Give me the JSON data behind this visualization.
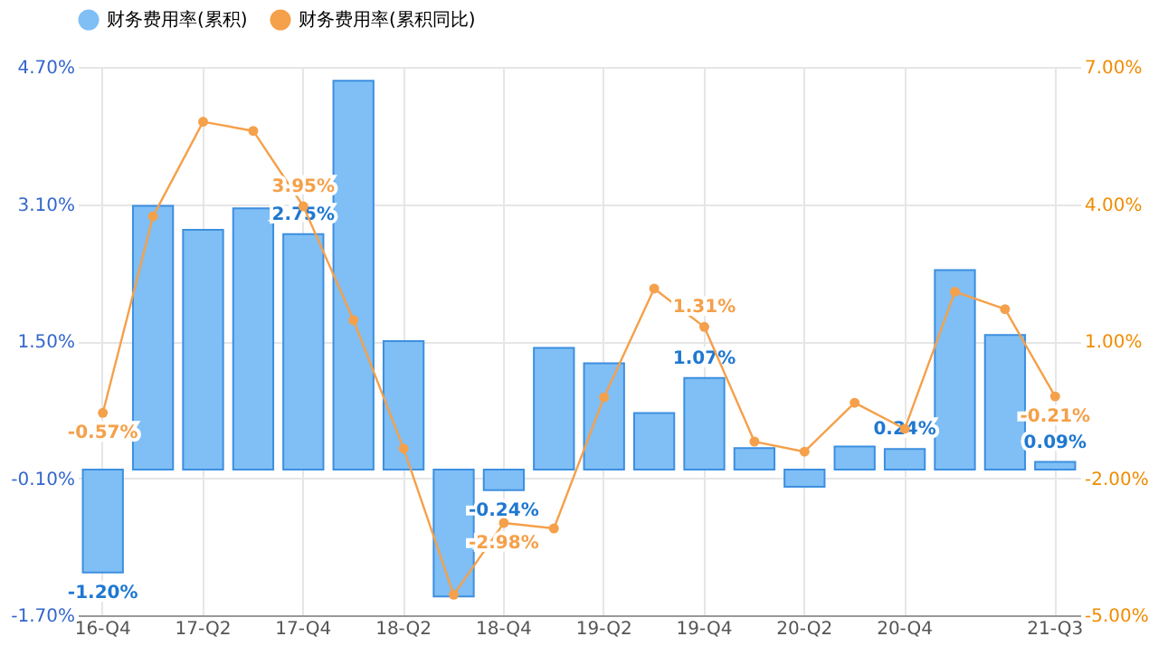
{
  "chart_data": {
    "type": "bar",
    "categories": [
      "16-Q4",
      null,
      "17-Q2",
      null,
      "17-Q4",
      null,
      "18-Q2",
      null,
      "18-Q4",
      null,
      "19-Q2",
      null,
      "19-Q4",
      null,
      "20-Q2",
      null,
      "20-Q4",
      null,
      null,
      "21-Q3"
    ],
    "series": [
      {
        "name": "财务费用率(累积)",
        "color": "#7fbff5",
        "values": [
          -1.2,
          3.08,
          2.8,
          3.05,
          2.75,
          4.54,
          1.5,
          -1.48,
          -0.24,
          1.42,
          1.24,
          0.66,
          1.07,
          0.25,
          -0.2,
          0.27,
          0.24,
          2.33,
          1.57,
          0.09
        ],
        "value_labels": [
          "-1.20%",
          null,
          null,
          null,
          "2.75%",
          null,
          null,
          null,
          "-0.24%",
          null,
          null,
          null,
          "1.07%",
          null,
          null,
          null,
          "0.24%",
          null,
          null,
          "0.09%"
        ]
      },
      {
        "name": "财务费用率(累积同比)",
        "type": "line",
        "axis": "y2",
        "color": "#f5a04a",
        "values": [
          -0.57,
          3.73,
          5.8,
          5.6,
          3.95,
          1.46,
          -1.35,
          -4.55,
          -2.98,
          -3.1,
          -0.23,
          2.15,
          1.31,
          -1.2,
          -1.42,
          -0.35,
          -0.92,
          2.08,
          1.7,
          -0.21
        ],
        "value_labels": [
          "-0.57%",
          null,
          null,
          null,
          "3.95%",
          null,
          null,
          null,
          "-2.98%",
          null,
          null,
          null,
          "1.31%",
          null,
          null,
          null,
          null,
          null,
          null,
          "-0.21%"
        ]
      }
    ],
    "ylim": [
      -1.7,
      4.7
    ],
    "yticks": [
      {
        "value": -1.7,
        "label": "-1.70%"
      },
      {
        "value": -0.1,
        "label": "-0.10%"
      },
      {
        "value": 1.5,
        "label": "1.50%"
      },
      {
        "value": 3.1,
        "label": "3.10%"
      },
      {
        "value": 4.7,
        "label": "4.70%"
      }
    ],
    "y2lim": [
      -5,
      7
    ],
    "y2ticks": [
      {
        "value": -5,
        "label": "-5.00%"
      },
      {
        "value": -2,
        "label": "-2.00%"
      },
      {
        "value": 1,
        "label": "1.00%"
      },
      {
        "value": 4,
        "label": "4.00%"
      },
      {
        "value": 7,
        "label": "7.00%"
      }
    ],
    "grid": true,
    "legend": "top",
    "marker": "circle",
    "line_style": "solid"
  }
}
